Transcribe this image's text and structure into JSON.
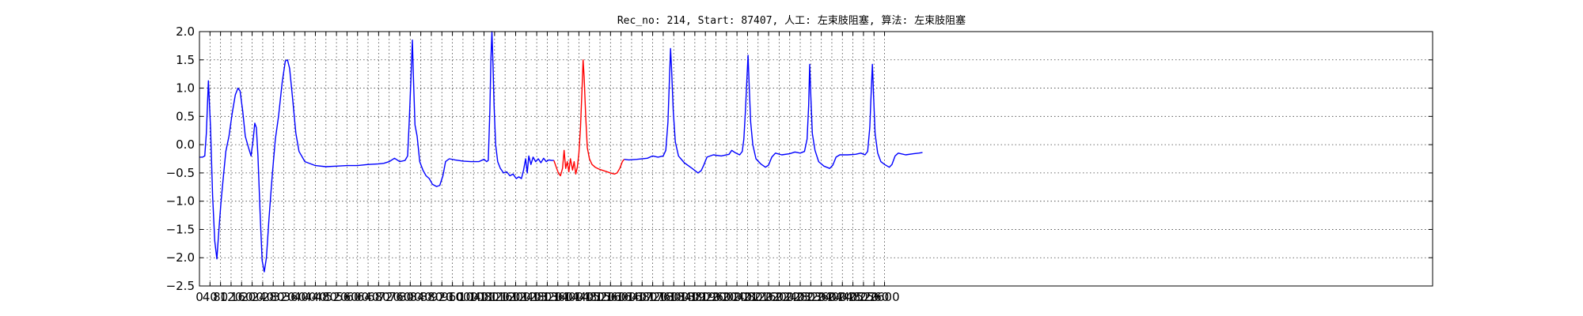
{
  "chart_data": {
    "type": "line",
    "title": "Rec_no: 214, Start: 87407, 人工: 左束肢阻塞, 算法: 左束肢阻塞",
    "xlabel": "",
    "ylabel": "",
    "xlim": [
      0,
      4680
    ],
    "ylim": [
      -2.5,
      2.0
    ],
    "grid": true,
    "yticks": [
      2.0,
      1.5,
      1.0,
      0.5,
      0.0,
      -0.5,
      -1.0,
      -1.5,
      -2.0,
      -2.5
    ],
    "ytick_labels": [
      "2.0",
      "1.5",
      "1.0",
      "0.5",
      "0.0",
      "−0.5",
      "−1.0",
      "−1.5",
      "−2.0",
      "−2.5"
    ],
    "xticks": [
      0,
      40,
      80,
      120,
      160,
      200,
      240,
      280,
      320,
      360,
      400,
      440,
      480,
      520,
      560,
      600,
      640,
      680,
      720,
      760,
      800,
      840,
      880,
      920,
      960,
      1000,
      1040,
      1080,
      1120,
      1160,
      1200,
      1240,
      1280,
      1320,
      1360,
      1400,
      1440,
      1480,
      1520,
      1560,
      1600,
      1640,
      1680,
      1720,
      1760,
      1800,
      1840,
      1880,
      1920,
      1960,
      2000,
      2040,
      2080,
      2120,
      2160,
      2200,
      2240,
      2280,
      2320,
      2360,
      2400,
      2440,
      2480,
      2520,
      2560,
      2600
    ],
    "xtick_labels": [
      "0",
      "40",
      "80",
      "120",
      "160",
      "200",
      "240",
      "280",
      "320",
      "360",
      "400",
      "440",
      "480",
      "520",
      "560",
      "600",
      "640",
      "680",
      "720",
      "760",
      "800",
      "840",
      "880",
      "920",
      "960",
      "1000",
      "1040",
      "1080",
      "1120",
      "1160",
      "1200",
      "1240",
      "1280",
      "1320",
      "1360",
      "1400",
      "1440",
      "1480",
      "1520",
      "1560",
      "1600",
      "1640",
      "1680",
      "1720",
      "1760",
      "1800",
      "1840",
      "1880",
      "1920",
      "1960",
      "2000",
      "2040",
      "2080",
      "2120",
      "2160",
      "2200",
      "2240",
      "2280",
      "2320",
      "2360",
      "2400",
      "2440",
      "2480",
      "2520",
      "2560",
      "2600"
    ],
    "series": [
      {
        "color": "#0000ff",
        "points": [
          [
            0,
            -0.22
          ],
          [
            12,
            -0.22
          ],
          [
            20,
            -0.2
          ],
          [
            26,
            0.2
          ],
          [
            34,
            1.13
          ],
          [
            42,
            0.3
          ],
          [
            50,
            -0.9
          ],
          [
            58,
            -1.7
          ],
          [
            66,
            -2.02
          ],
          [
            74,
            -1.5
          ],
          [
            82,
            -1.0
          ],
          [
            90,
            -0.6
          ],
          [
            100,
            -0.12
          ],
          [
            112,
            0.15
          ],
          [
            124,
            0.55
          ],
          [
            136,
            0.88
          ],
          [
            146,
            1.0
          ],
          [
            154,
            0.95
          ],
          [
            164,
            0.6
          ],
          [
            174,
            0.15
          ],
          [
            186,
            -0.05
          ],
          [
            196,
            -0.2
          ],
          [
            204,
            0.1
          ],
          [
            210,
            0.38
          ],
          [
            216,
            0.3
          ],
          [
            222,
            -0.2
          ],
          [
            230,
            -1.2
          ],
          [
            238,
            -2.05
          ],
          [
            246,
            -2.25
          ],
          [
            254,
            -2.0
          ],
          [
            264,
            -1.3
          ],
          [
            276,
            -0.55
          ],
          [
            288,
            0.1
          ],
          [
            300,
            0.5
          ],
          [
            314,
            1.1
          ],
          [
            326,
            1.48
          ],
          [
            334,
            1.5
          ],
          [
            342,
            1.35
          ],
          [
            354,
            0.8
          ],
          [
            366,
            0.2
          ],
          [
            378,
            -0.12
          ],
          [
            400,
            -0.3
          ],
          [
            440,
            -0.37
          ],
          [
            480,
            -0.39
          ],
          [
            520,
            -0.38
          ],
          [
            560,
            -0.37
          ],
          [
            600,
            -0.37
          ],
          [
            640,
            -0.35
          ],
          [
            680,
            -0.34
          ],
          [
            700,
            -0.33
          ],
          [
            720,
            -0.3
          ],
          [
            740,
            -0.24
          ],
          [
            760,
            -0.3
          ],
          [
            780,
            -0.28
          ],
          [
            790,
            -0.2
          ],
          [
            796,
            0.4
          ],
          [
            802,
            1.1
          ],
          [
            808,
            1.85
          ],
          [
            812,
            1.2
          ],
          [
            818,
            0.35
          ],
          [
            826,
            0.15
          ],
          [
            836,
            -0.3
          ],
          [
            848,
            -0.45
          ],
          [
            860,
            -0.55
          ],
          [
            872,
            -0.6
          ],
          [
            884,
            -0.7
          ],
          [
            900,
            -0.74
          ],
          [
            912,
            -0.72
          ],
          [
            924,
            -0.55
          ],
          [
            934,
            -0.3
          ],
          [
            948,
            -0.25
          ],
          [
            970,
            -0.27
          ],
          [
            1000,
            -0.29
          ],
          [
            1030,
            -0.3
          ],
          [
            1060,
            -0.3
          ],
          [
            1080,
            -0.26
          ],
          [
            1090,
            -0.3
          ],
          [
            1096,
            -0.28
          ],
          [
            1102,
            0.6
          ],
          [
            1106,
            1.5
          ],
          [
            1110,
            2.0
          ],
          [
            1114,
            1.4
          ],
          [
            1118,
            0.7
          ],
          [
            1124,
            0.0
          ],
          [
            1132,
            -0.3
          ],
          [
            1142,
            -0.42
          ],
          [
            1154,
            -0.5
          ],
          [
            1166,
            -0.48
          ],
          [
            1178,
            -0.55
          ],
          [
            1190,
            -0.52
          ],
          [
            1202,
            -0.6
          ],
          [
            1212,
            -0.57
          ],
          [
            1222,
            -0.6
          ],
          [
            1230,
            -0.45
          ],
          [
            1238,
            -0.25
          ],
          [
            1244,
            -0.5
          ],
          [
            1250,
            -0.2
          ],
          [
            1258,
            -0.35
          ],
          [
            1266,
            -0.22
          ],
          [
            1276,
            -0.3
          ],
          [
            1286,
            -0.25
          ],
          [
            1296,
            -0.32
          ],
          [
            1306,
            -0.24
          ],
          [
            1316,
            -0.3
          ],
          [
            1326,
            -0.27
          ],
          [
            1336,
            -0.28
          ],
          [
            1345,
            -0.28
          ]
        ]
      },
      {
        "color": "#ff0000",
        "points": [
          [
            1345,
            -0.28
          ],
          [
            1354,
            -0.4
          ],
          [
            1362,
            -0.5
          ],
          [
            1370,
            -0.55
          ],
          [
            1378,
            -0.42
          ],
          [
            1384,
            -0.1
          ],
          [
            1390,
            -0.42
          ],
          [
            1396,
            -0.3
          ],
          [
            1402,
            -0.48
          ],
          [
            1408,
            -0.25
          ],
          [
            1416,
            -0.45
          ],
          [
            1422,
            -0.3
          ],
          [
            1428,
            -0.52
          ],
          [
            1434,
            -0.4
          ],
          [
            1440,
            -0.15
          ],
          [
            1446,
            0.3
          ],
          [
            1452,
            1.0
          ],
          [
            1456,
            1.5
          ],
          [
            1460,
            1.2
          ],
          [
            1466,
            0.5
          ],
          [
            1472,
            -0.05
          ],
          [
            1480,
            -0.25
          ],
          [
            1490,
            -0.35
          ],
          [
            1502,
            -0.4
          ],
          [
            1520,
            -0.44
          ],
          [
            1540,
            -0.47
          ],
          [
            1560,
            -0.5
          ],
          [
            1575,
            -0.52
          ],
          [
            1585,
            -0.5
          ],
          [
            1595,
            -0.42
          ],
          [
            1605,
            -0.3
          ],
          [
            1612,
            -0.26
          ]
        ]
      },
      {
        "color": "#0000ff",
        "points": [
          [
            1612,
            -0.26
          ],
          [
            1630,
            -0.27
          ],
          [
            1660,
            -0.26
          ],
          [
            1700,
            -0.24
          ],
          [
            1720,
            -0.2
          ],
          [
            1740,
            -0.22
          ],
          [
            1760,
            -0.2
          ],
          [
            1770,
            -0.1
          ],
          [
            1778,
            0.4
          ],
          [
            1784,
            1.2
          ],
          [
            1788,
            1.7
          ],
          [
            1792,
            1.3
          ],
          [
            1798,
            0.6
          ],
          [
            1806,
            0.05
          ],
          [
            1818,
            -0.2
          ],
          [
            1840,
            -0.32
          ],
          [
            1870,
            -0.42
          ],
          [
            1892,
            -0.5
          ],
          [
            1904,
            -0.46
          ],
          [
            1914,
            -0.36
          ],
          [
            1926,
            -0.22
          ],
          [
            1950,
            -0.18
          ],
          [
            1980,
            -0.2
          ],
          [
            2010,
            -0.17
          ],
          [
            2020,
            -0.1
          ],
          [
            2032,
            -0.14
          ],
          [
            2050,
            -0.18
          ],
          [
            2060,
            -0.12
          ],
          [
            2066,
            0.1
          ],
          [
            2072,
            0.6
          ],
          [
            2078,
            1.2
          ],
          [
            2082,
            1.58
          ],
          [
            2086,
            1.1
          ],
          [
            2092,
            0.4
          ],
          [
            2100,
            0.0
          ],
          [
            2112,
            -0.25
          ],
          [
            2130,
            -0.34
          ],
          [
            2148,
            -0.4
          ],
          [
            2160,
            -0.36
          ],
          [
            2172,
            -0.22
          ],
          [
            2186,
            -0.15
          ],
          [
            2210,
            -0.18
          ],
          [
            2240,
            -0.16
          ],
          [
            2260,
            -0.13
          ],
          [
            2280,
            -0.15
          ],
          [
            2296,
            -0.12
          ],
          [
            2306,
            0.1
          ],
          [
            2312,
            0.7
          ],
          [
            2316,
            1.42
          ],
          [
            2320,
            0.9
          ],
          [
            2326,
            0.2
          ],
          [
            2336,
            -0.1
          ],
          [
            2350,
            -0.3
          ],
          [
            2370,
            -0.38
          ],
          [
            2392,
            -0.42
          ],
          [
            2404,
            -0.36
          ],
          [
            2416,
            -0.22
          ],
          [
            2430,
            -0.18
          ],
          [
            2460,
            -0.18
          ],
          [
            2490,
            -0.17
          ],
          [
            2510,
            -0.15
          ],
          [
            2526,
            -0.18
          ],
          [
            2536,
            -0.12
          ],
          [
            2544,
            0.3
          ],
          [
            2550,
            1.0
          ],
          [
            2554,
            1.42
          ],
          [
            2558,
            0.9
          ],
          [
            2564,
            0.2
          ],
          [
            2574,
            -0.15
          ],
          [
            2586,
            -0.3
          ],
          [
            2600,
            -0.35
          ],
          [
            2618,
            -0.4
          ],
          [
            2628,
            -0.35
          ],
          [
            2640,
            -0.2
          ],
          [
            2652,
            -0.15
          ],
          [
            2680,
            -0.18
          ],
          [
            2710,
            -0.16
          ],
          [
            2730,
            -0.15
          ],
          [
            2744,
            -0.14
          ]
        ]
      }
    ]
  }
}
